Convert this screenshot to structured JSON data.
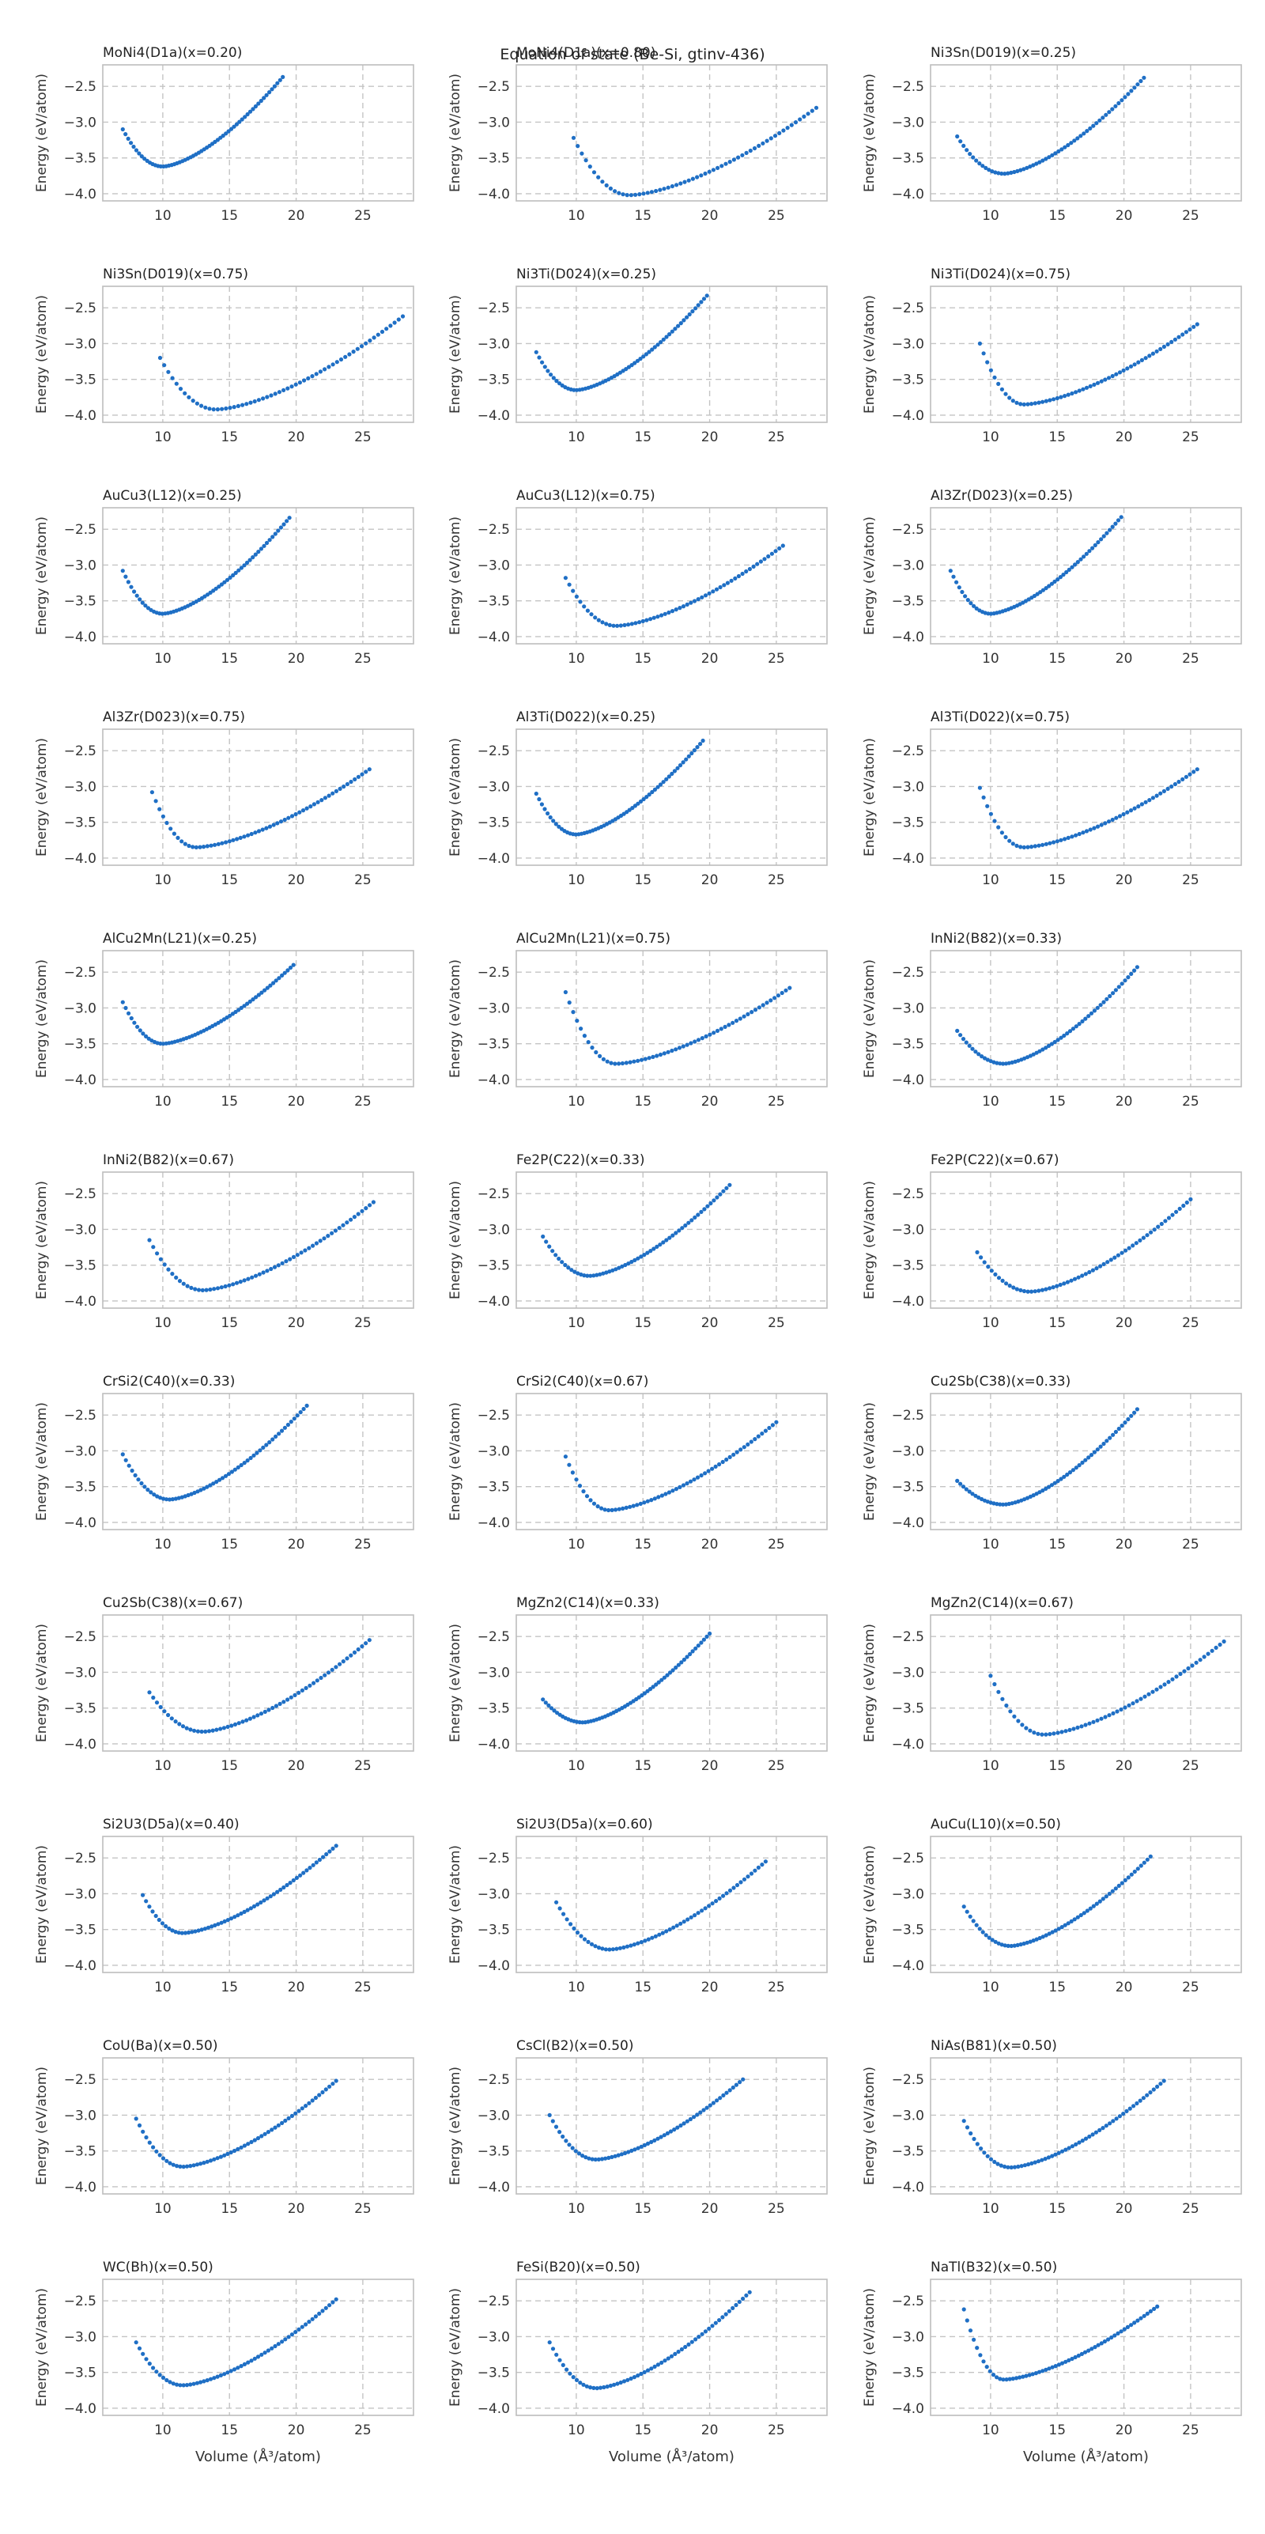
{
  "title": "Equation of state (Be-Si, gtinv-436)",
  "chart_data": {
    "type": "scatter",
    "layout": "11 rows x 3 columns, shared axes",
    "xlabel": "Volume (Å³/atom)",
    "ylabel": "Energy (eV/atom)",
    "xlim": [
      5.5,
      28.8
    ],
    "ylim": [
      -4.1,
      -2.2
    ],
    "xticks": [
      10,
      15,
      20,
      25
    ],
    "yticks": [
      -2.5,
      -3.0,
      -3.5,
      -4.0
    ],
    "xtick_labels": [
      "10",
      "15",
      "20",
      "25"
    ],
    "ytick_labels": [
      "−2.5",
      "−3.0",
      "−3.5",
      "−4.0"
    ],
    "grid": true,
    "marker_color": "#1f6fc5",
    "points_per_panel": 60,
    "panels": [
      {
        "title": "MoNi4(D1a)(x=0.20)",
        "x_min": 7.0,
        "x_max": 19.0,
        "v_min": 10.0,
        "e_min": -3.62,
        "e_left": -3.1,
        "e_right": -2.37
      },
      {
        "title": "MoNi4(D1a)(x=0.80)",
        "x_min": 9.8,
        "x_max": 28.0,
        "v_min": 14.0,
        "e_min": -4.02,
        "e_left": -3.22,
        "e_right": -2.8
      },
      {
        "title": "Ni3Sn(D019)(x=0.25)",
        "x_min": 7.5,
        "x_max": 21.5,
        "v_min": 11.0,
        "e_min": -3.72,
        "e_left": -3.2,
        "e_right": -2.38
      },
      {
        "title": "Ni3Sn(D019)(x=0.75)",
        "x_min": 9.8,
        "x_max": 28.0,
        "v_min": 14.0,
        "e_min": -3.92,
        "e_left": -3.2,
        "e_right": -2.62
      },
      {
        "title": "Ni3Ti(D024)(x=0.25)",
        "x_min": 7.0,
        "x_max": 19.8,
        "v_min": 10.0,
        "e_min": -3.65,
        "e_left": -3.12,
        "e_right": -2.33
      },
      {
        "title": "Ni3Ti(D024)(x=0.75)",
        "x_min": 9.2,
        "x_max": 25.5,
        "v_min": 12.5,
        "e_min": -3.85,
        "e_left": -3.0,
        "e_right": -2.73
      },
      {
        "title": "AuCu3(L12)(x=0.25)",
        "x_min": 7.0,
        "x_max": 19.5,
        "v_min": 10.0,
        "e_min": -3.68,
        "e_left": -3.08,
        "e_right": -2.34
      },
      {
        "title": "AuCu3(L12)(x=0.75)",
        "x_min": 9.2,
        "x_max": 25.5,
        "v_min": 13.0,
        "e_min": -3.85,
        "e_left": -3.18,
        "e_right": -2.73
      },
      {
        "title": "Al3Zr(D023)(x=0.25)",
        "x_min": 7.0,
        "x_max": 19.8,
        "v_min": 10.0,
        "e_min": -3.68,
        "e_left": -3.08,
        "e_right": -2.33
      },
      {
        "title": "Al3Zr(D023)(x=0.75)",
        "x_min": 9.2,
        "x_max": 25.5,
        "v_min": 12.5,
        "e_min": -3.85,
        "e_left": -3.08,
        "e_right": -2.76
      },
      {
        "title": "Al3Ti(D022)(x=0.25)",
        "x_min": 7.0,
        "x_max": 19.5,
        "v_min": 10.0,
        "e_min": -3.67,
        "e_left": -3.1,
        "e_right": -2.36
      },
      {
        "title": "Al3Ti(D022)(x=0.75)",
        "x_min": 9.2,
        "x_max": 25.5,
        "v_min": 12.5,
        "e_min": -3.85,
        "e_left": -3.02,
        "e_right": -2.76
      },
      {
        "title": "AlCu2Mn(L21)(x=0.25)",
        "x_min": 7.0,
        "x_max": 19.8,
        "v_min": 10.0,
        "e_min": -3.5,
        "e_left": -2.92,
        "e_right": -2.4
      },
      {
        "title": "AlCu2Mn(L21)(x=0.75)",
        "x_min": 9.2,
        "x_max": 26.0,
        "v_min": 13.0,
        "e_min": -3.78,
        "e_left": -2.78,
        "e_right": -2.72
      },
      {
        "title": "InNi2(B82)(x=0.33)",
        "x_min": 7.5,
        "x_max": 21.0,
        "v_min": 11.0,
        "e_min": -3.78,
        "e_left": -3.32,
        "e_right": -2.43
      },
      {
        "title": "InNi2(B82)(x=0.67)",
        "x_min": 9.0,
        "x_max": 25.8,
        "v_min": 13.0,
        "e_min": -3.85,
        "e_left": -3.15,
        "e_right": -2.62
      },
      {
        "title": "Fe2P(C22)(x=0.33)",
        "x_min": 7.5,
        "x_max": 21.5,
        "v_min": 11.0,
        "e_min": -3.65,
        "e_left": -3.1,
        "e_right": -2.38
      },
      {
        "title": "Fe2P(C22)(x=0.67)",
        "x_min": 9.0,
        "x_max": 25.0,
        "v_min": 13.0,
        "e_min": -3.87,
        "e_left": -3.32,
        "e_right": -2.58
      },
      {
        "title": "CrSi2(C40)(x=0.33)",
        "x_min": 7.0,
        "x_max": 20.8,
        "v_min": 10.5,
        "e_min": -3.68,
        "e_left": -3.05,
        "e_right": -2.37
      },
      {
        "title": "CrSi2(C40)(x=0.67)",
        "x_min": 9.2,
        "x_max": 25.0,
        "v_min": 12.5,
        "e_min": -3.83,
        "e_left": -3.08,
        "e_right": -2.6
      },
      {
        "title": "Cu2Sb(C38)(x=0.33)",
        "x_min": 7.5,
        "x_max": 21.0,
        "v_min": 11.0,
        "e_min": -3.75,
        "e_left": -3.42,
        "e_right": -2.42
      },
      {
        "title": "Cu2Sb(C38)(x=0.67)",
        "x_min": 9.0,
        "x_max": 25.5,
        "v_min": 13.0,
        "e_min": -3.83,
        "e_left": -3.28,
        "e_right": -2.55
      },
      {
        "title": "MgZn2(C14)(x=0.33)",
        "x_min": 7.5,
        "x_max": 20.0,
        "v_min": 10.5,
        "e_min": -3.7,
        "e_left": -3.38,
        "e_right": -2.46
      },
      {
        "title": "MgZn2(C14)(x=0.67)",
        "x_min": 10.0,
        "x_max": 27.5,
        "v_min": 14.0,
        "e_min": -3.87,
        "e_left": -3.05,
        "e_right": -2.57
      },
      {
        "title": "Si2U3(D5a)(x=0.40)",
        "x_min": 8.5,
        "x_max": 23.0,
        "v_min": 11.5,
        "e_min": -3.55,
        "e_left": -3.02,
        "e_right": -2.33
      },
      {
        "title": "Si2U3(D5a)(x=0.60)",
        "x_min": 8.5,
        "x_max": 24.2,
        "v_min": 12.5,
        "e_min": -3.78,
        "e_left": -3.12,
        "e_right": -2.55
      },
      {
        "title": "AuCu(L10)(x=0.50)",
        "x_min": 8.0,
        "x_max": 22.0,
        "v_min": 11.5,
        "e_min": -3.73,
        "e_left": -3.18,
        "e_right": -2.48
      },
      {
        "title": "CoU(Ba)(x=0.50)",
        "x_min": 8.0,
        "x_max": 23.0,
        "v_min": 11.5,
        "e_min": -3.72,
        "e_left": -3.05,
        "e_right": -2.52
      },
      {
        "title": "CsCl(B2)(x=0.50)",
        "x_min": 8.0,
        "x_max": 22.5,
        "v_min": 11.5,
        "e_min": -3.62,
        "e_left": -3.0,
        "e_right": -2.5
      },
      {
        "title": "NiAs(B81)(x=0.50)",
        "x_min": 8.0,
        "x_max": 23.0,
        "v_min": 11.5,
        "e_min": -3.73,
        "e_left": -3.08,
        "e_right": -2.52
      },
      {
        "title": "WC(Bh)(x=0.50)",
        "x_min": 8.0,
        "x_max": 23.0,
        "v_min": 11.5,
        "e_min": -3.68,
        "e_left": -3.08,
        "e_right": -2.48
      },
      {
        "title": "FeSi(B20)(x=0.50)",
        "x_min": 8.0,
        "x_max": 23.0,
        "v_min": 11.5,
        "e_min": -3.72,
        "e_left": -3.08,
        "e_right": -2.38
      },
      {
        "title": "NaTl(B32)(x=0.50)",
        "x_min": 8.0,
        "x_max": 22.5,
        "v_min": 11.0,
        "e_min": -3.6,
        "e_left": -2.62,
        "e_right": -2.58
      }
    ]
  }
}
